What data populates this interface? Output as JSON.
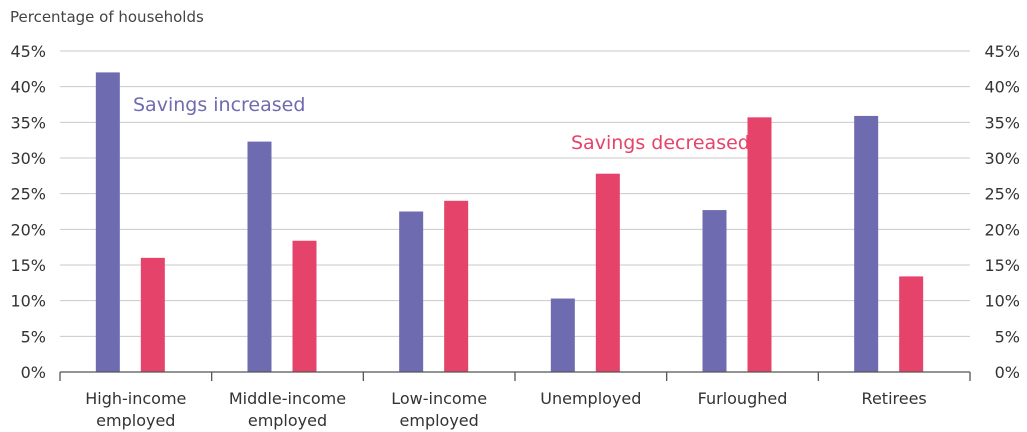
{
  "chart_data": {
    "type": "bar",
    "y_unit_label": "Percentage of households",
    "categories": [
      [
        "High-income",
        "employed"
      ],
      [
        "Middle-income",
        "employed"
      ],
      [
        "Low-income",
        "employed"
      ],
      [
        "Unemployed"
      ],
      [
        "Furloughed"
      ],
      [
        "Retirees"
      ]
    ],
    "series": [
      {
        "name": "Savings increased",
        "color": "#6e6bb0",
        "values": [
          42,
          32.3,
          22.5,
          10.3,
          22.7,
          35.9
        ]
      },
      {
        "name": "Savings decreased",
        "color": "#e5436a",
        "values": [
          16,
          18.4,
          24,
          27.8,
          35.7,
          13.4
        ]
      }
    ],
    "ylim": [
      0,
      45
    ],
    "yticks": [
      "0%",
      "5%",
      "10%",
      "15%",
      "20%",
      "25%",
      "30%",
      "35%",
      "40%",
      "45%"
    ],
    "grid": true,
    "dual_y_axis": true
  }
}
